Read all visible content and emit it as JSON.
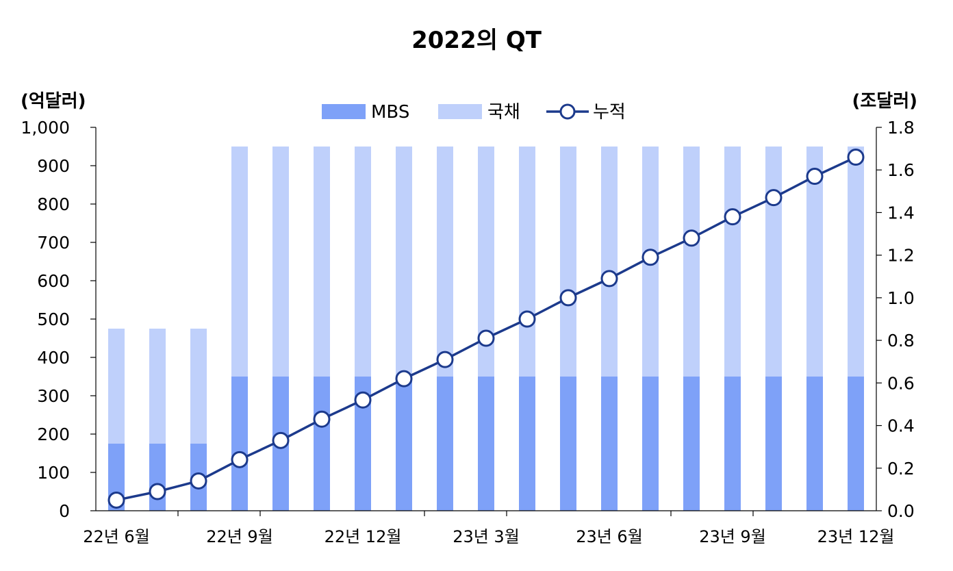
{
  "chart_data": {
    "type": "bar",
    "title": "2022의 QT",
    "y_left_label": "(억달러)",
    "y_right_label": "(조달러)",
    "y_left_ticks": [
      "0",
      "100",
      "200",
      "300",
      "400",
      "500",
      "600",
      "700",
      "800",
      "900",
      "1,000"
    ],
    "y_right_ticks": [
      "0.0",
      "0.2",
      "0.4",
      "0.6",
      "0.8",
      "1.0",
      "1.2",
      "1.4",
      "1.6",
      "1.8"
    ],
    "ylim_left": [
      0,
      1000
    ],
    "ylim_right": [
      0,
      1.8
    ],
    "x_tick_labels": [
      "22년 6월",
      "22년 9월",
      "22년 12월",
      "23년 3월",
      "23년 6월",
      "23년 9월",
      "23년 12월"
    ],
    "x_months": [
      "22-06",
      "22-07",
      "22-08",
      "22-09",
      "22-10",
      "22-11",
      "22-12",
      "23-01",
      "23-02",
      "23-03",
      "23-04",
      "23-05",
      "23-06",
      "23-07",
      "23-08",
      "23-09",
      "23-10",
      "23-11",
      "23-12"
    ],
    "series": [
      {
        "name": "MBS",
        "kind": "stacked-bar",
        "color": "#7ea1f8",
        "values": [
          175,
          175,
          175,
          350,
          350,
          350,
          350,
          350,
          350,
          350,
          350,
          350,
          350,
          350,
          350,
          350,
          350,
          350,
          350
        ]
      },
      {
        "name": "국채",
        "kind": "stacked-bar",
        "color": "#bfd0fb",
        "values": [
          300,
          300,
          300,
          600,
          600,
          600,
          600,
          600,
          600,
          600,
          600,
          600,
          600,
          600,
          600,
          600,
          600,
          600,
          600
        ]
      },
      {
        "name": "누적",
        "kind": "line",
        "axis": "right",
        "color": "#1c3a8c",
        "values": [
          0.05,
          0.09,
          0.14,
          0.24,
          0.33,
          0.43,
          0.52,
          0.62,
          0.71,
          0.81,
          0.9,
          1.0,
          1.09,
          1.19,
          1.28,
          1.38,
          1.47,
          1.57,
          1.66
        ]
      }
    ],
    "legend_position": "top-center",
    "grid": false
  }
}
